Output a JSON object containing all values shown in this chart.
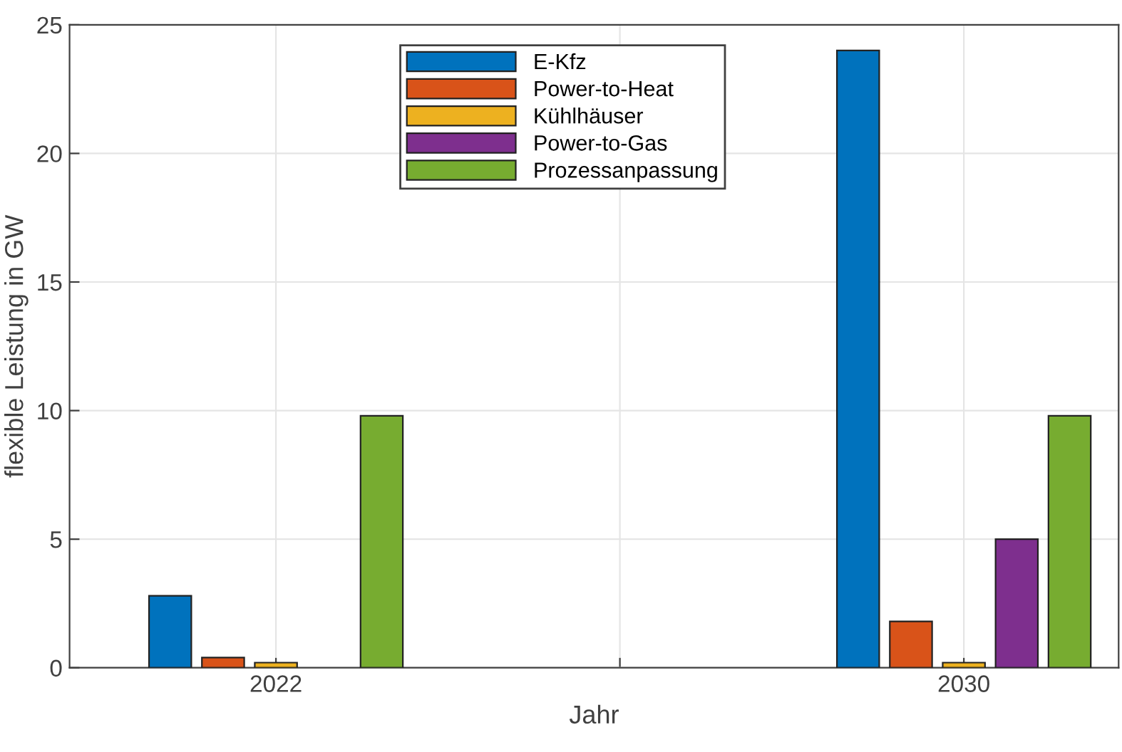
{
  "chart_data": {
    "type": "bar",
    "xlabel": "Jahr",
    "ylabel": "flexible Leistung in GW",
    "x": [
      2022,
      2030
    ],
    "series": [
      {
        "name": "E-Kfz",
        "color": "#0072bd",
        "values": [
          2.8,
          24
        ]
      },
      {
        "name": "Power-to-Heat",
        "color": "#d95319",
        "values": [
          0.4,
          1.8
        ]
      },
      {
        "name": "Kühlhäuser",
        "color": "#edb120",
        "values": [
          0.2,
          0.2
        ]
      },
      {
        "name": "Power-to-Gas",
        "color": "#7e2f8e",
        "values": [
          null,
          5
        ]
      },
      {
        "name": "Prozessanpassung",
        "color": "#77ac30",
        "values": [
          9.8,
          9.8
        ]
      }
    ],
    "xlim": [
      2019.6,
      2031.8
    ],
    "xticks": [
      2022,
      {
        "value": 2026,
        "label": null
      },
      2030
    ],
    "ylim": [
      0,
      25
    ],
    "yticks": [
      0,
      5,
      10,
      15,
      20,
      25
    ],
    "grid": true,
    "legend": "top"
  }
}
